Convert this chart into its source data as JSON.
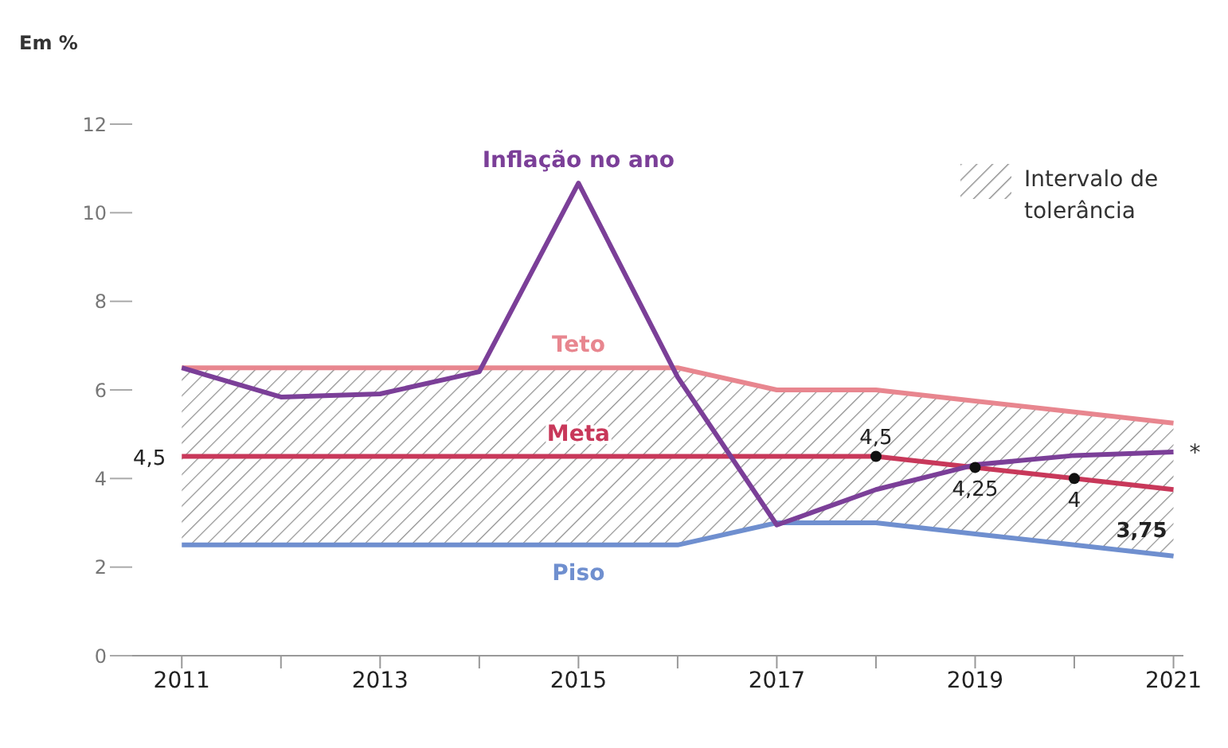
{
  "chart_data": {
    "type": "line",
    "ylabel": "Em %",
    "x": [
      2011,
      2012,
      2013,
      2014,
      2015,
      2016,
      2017,
      2018,
      2019,
      2020,
      2021
    ],
    "series": [
      {
        "name": "Teto",
        "color": "#e8868f",
        "values": [
          6.5,
          6.5,
          6.5,
          6.5,
          6.5,
          6.5,
          6,
          6,
          5.75,
          5.5,
          5.25
        ]
      },
      {
        "name": "Piso",
        "color": "#6f8fcf",
        "values": [
          2.5,
          2.5,
          2.5,
          2.5,
          2.5,
          2.5,
          3,
          3,
          2.75,
          2.5,
          2.25
        ]
      },
      {
        "name": "Meta",
        "color": "#c8385a",
        "values": [
          4.5,
          4.5,
          4.5,
          4.5,
          4.5,
          4.5,
          4.5,
          4.5,
          4.25,
          4,
          3.75
        ],
        "value_labels": [
          "4,5",
          null,
          null,
          null,
          null,
          null,
          null,
          "4,5",
          "4,25",
          "4",
          "3,75"
        ],
        "lower": [
          2.5,
          2.5,
          2.5,
          2.5,
          2.5,
          2.5,
          3,
          3,
          2.75,
          2.5,
          2.25
        ],
        "upper": [
          6.5,
          6.5,
          6.5,
          6.5,
          6.5,
          6.5,
          6,
          6,
          5.75,
          5.5,
          5.25
        ]
      },
      {
        "name": "Inflação no ano",
        "color": "#7b3f98",
        "values": [
          6.5,
          5.84,
          5.91,
          6.41,
          10.67,
          6.29,
          2.95,
          3.75,
          4.31,
          4.52,
          4.6
        ]
      }
    ],
    "xlim": [
      2010.5,
      2021.1
    ],
    "xticks": [
      2011,
      {
        "value": 2012,
        "label": null
      },
      2013,
      {
        "value": 2014,
        "label": null
      },
      2015,
      {
        "value": 2016,
        "label": null
      },
      2017,
      {
        "value": 2018,
        "label": null
      },
      2019,
      {
        "value": 2020,
        "label": null
      },
      2021
    ],
    "ylim": [
      0,
      12
    ],
    "yticks": [
      0,
      2,
      4,
      6,
      8,
      10,
      12
    ],
    "legend_title": "Intervalo de tolerância",
    "annotations": [
      {
        "text": "*",
        "x": 2021,
        "y": 4.6
      }
    ]
  }
}
